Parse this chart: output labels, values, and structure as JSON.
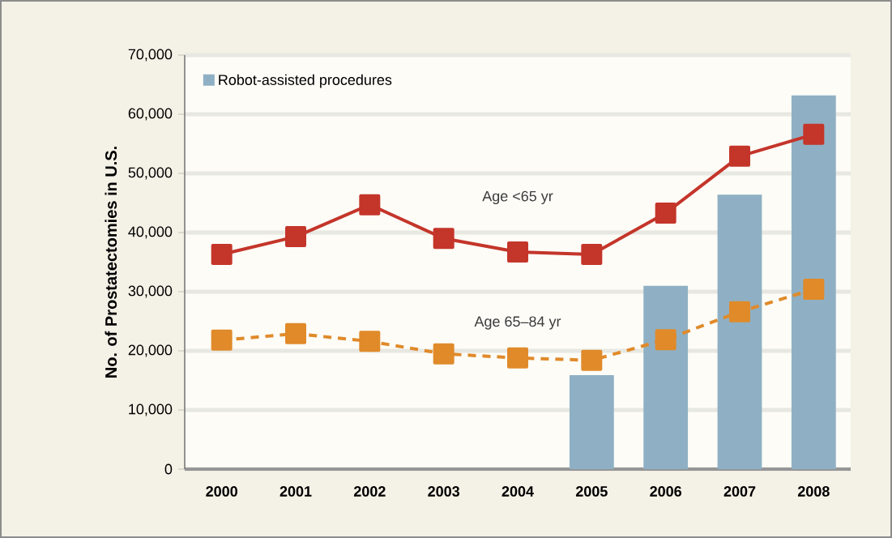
{
  "chart_data": {
    "type": "line",
    "ylabel": "No. of Prostatectomies in U.S.",
    "categories": [
      "2000",
      "2001",
      "2002",
      "2003",
      "2004",
      "2005",
      "2006",
      "2007",
      "2008"
    ],
    "series": [
      {
        "name": "Robot-assisted procedures",
        "type": "bar",
        "color": "#8fb0c4",
        "values": [
          null,
          null,
          null,
          null,
          null,
          15900,
          31000,
          46400,
          63200
        ]
      },
      {
        "name": "Age <65 yr",
        "color": "#c4352a",
        "marker": "square",
        "line_style": "solid",
        "values": [
          36300,
          39300,
          44700,
          39000,
          36700,
          36300,
          43300,
          52900,
          56600
        ]
      },
      {
        "name": "Age 65–84 yr",
        "color": "#e08a2a",
        "marker": "square",
        "line_style": "dashed",
        "values": [
          21800,
          22900,
          21600,
          19500,
          18800,
          18400,
          21900,
          26600,
          30400
        ]
      }
    ],
    "ylim": [
      0,
      70000
    ],
    "yticks": [
      {
        "value": 0,
        "label": "0"
      },
      {
        "value": 10000,
        "label": "10,000"
      },
      {
        "value": 20000,
        "label": "20,000"
      },
      {
        "value": 30000,
        "label": "30,000"
      },
      {
        "value": 40000,
        "label": "40,000"
      },
      {
        "value": 50000,
        "label": "50,000"
      },
      {
        "value": 60000,
        "label": "60,000"
      },
      {
        "value": 70000,
        "label": "70,000"
      }
    ],
    "grid": "y",
    "legend": "top left"
  }
}
